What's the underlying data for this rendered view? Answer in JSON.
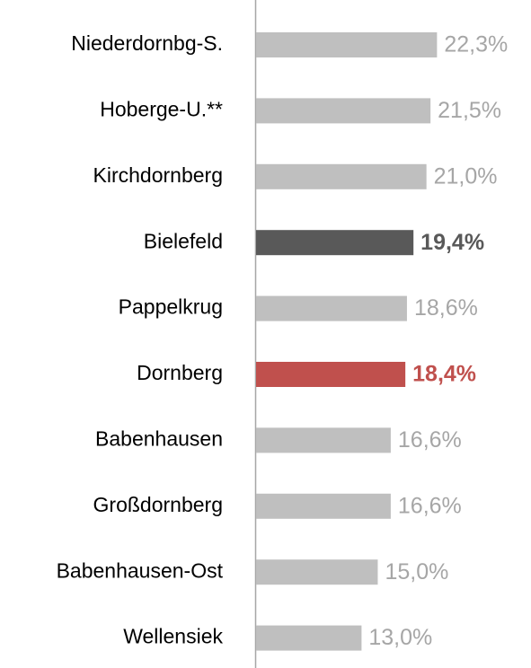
{
  "chart_data": {
    "type": "barh",
    "categories": [
      "Niederdornbg-S.",
      "Hoberge-U.**",
      "Kirchdornberg",
      "Bielefeld",
      "Pappelkrug",
      "Dornberg",
      "Babenhausen",
      "Großdornberg",
      "Babenhausen-Ost",
      "Wellensiek"
    ],
    "values": [
      22.3,
      21.5,
      21.0,
      19.4,
      18.6,
      18.4,
      16.6,
      16.6,
      15.0,
      13.0
    ],
    "value_labels": [
      "22,3%",
      "21,5%",
      "21,0%",
      "19,4%",
      "18,6%",
      "18,4%",
      "16,6%",
      "16,6%",
      "15,0%",
      "13,0%"
    ],
    "colors": [
      "#bfbfbf",
      "#bfbfbf",
      "#bfbfbf",
      "#595959",
      "#bfbfbf",
      "#c0504d",
      "#bfbfbf",
      "#bfbfbf",
      "#bfbfbf",
      "#bfbfbf"
    ],
    "value_label_colors": [
      "#a6a6a6",
      "#a6a6a6",
      "#a6a6a6",
      "#595959",
      "#a6a6a6",
      "#c0504d",
      "#a6a6a6",
      "#a6a6a6",
      "#a6a6a6",
      "#a6a6a6"
    ],
    "value_label_bold": [
      false,
      false,
      false,
      true,
      false,
      true,
      false,
      false,
      false,
      false
    ]
  }
}
